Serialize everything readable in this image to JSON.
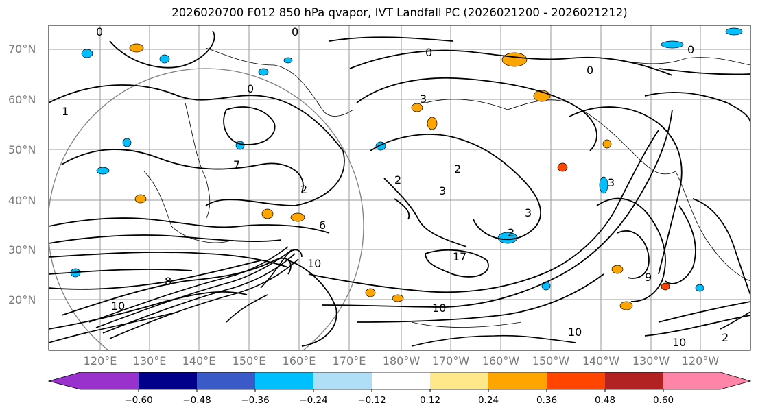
{
  "title": "2026020700 F012 850 hPa qvapor, IVT Landfall PC (2026021200 - 2026021212)",
  "lat_labels": [
    "70°N",
    "60°N",
    "50°N",
    "40°N",
    "30°N",
    "20°N"
  ],
  "lon_labels": [
    "120°E",
    "130°E",
    "140°E",
    "150°E",
    "160°E",
    "170°E",
    "180°W",
    "170°W",
    "160°W",
    "150°W",
    "140°W",
    "130°W",
    "120°W"
  ],
  "colorbar": {
    "ticks": [
      "−0.60",
      "−0.48",
      "−0.36",
      "−0.24",
      "−0.12",
      "0.12",
      "0.24",
      "0.36",
      "0.48",
      "0.60"
    ],
    "colors": [
      "#9932cc",
      "#00008b",
      "#3a5bc7",
      "#00bfff",
      "#aedff7",
      "#ffffff",
      "#ffe88a",
      "#ffa500",
      "#ff4500",
      "#b22222",
      "#ff85a8"
    ]
  },
  "contour_labels": [
    "0",
    "0",
    "0",
    "0",
    "0",
    "0",
    "1",
    "2",
    "2",
    "2",
    "2",
    "3",
    "3",
    "3",
    "3",
    "6",
    "7",
    "8",
    "9",
    "10",
    "10",
    "10",
    "10",
    "10",
    "17",
    "2"
  ]
}
